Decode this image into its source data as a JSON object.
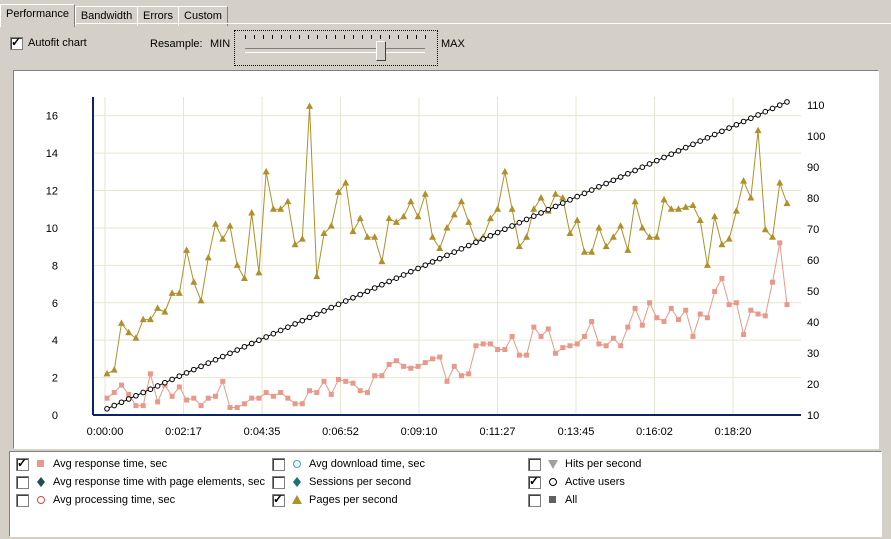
{
  "tabs": [
    {
      "label": "Performance",
      "active": true
    },
    {
      "label": "Bandwidth",
      "active": false
    },
    {
      "label": "Errors",
      "active": false
    },
    {
      "label": "Custom",
      "active": false
    }
  ],
  "autofit": {
    "label": "Autofit chart",
    "checked": true
  },
  "resample": {
    "label": "Resample:",
    "min_label": "MIN",
    "max_label": "MAX",
    "level": 0.75
  },
  "chart_data": {
    "type": "line",
    "x_tick_labels": [
      "0:00:00",
      "0:02:17",
      "0:04:35",
      "0:06:52",
      "0:09:10",
      "0:11:27",
      "0:13:45",
      "0:16:02",
      "0:18:20"
    ],
    "y_left": {
      "ylim": [
        0,
        17
      ],
      "ticks": [
        0,
        2,
        4,
        6,
        8,
        10,
        12,
        14,
        16
      ]
    },
    "y_right": {
      "ylim": [
        10,
        110
      ],
      "ticks": [
        10,
        20,
        30,
        40,
        50,
        60,
        70,
        80,
        90,
        100,
        110
      ]
    },
    "series": [
      {
        "name": "Avg response time, sec",
        "axis": "left",
        "color": "#e8998a",
        "marker": "square",
        "values": [
          0.9,
          1.2,
          1.6,
          1.1,
          0.5,
          0.5,
          2.2,
          0.7,
          1.6,
          1.0,
          1.5,
          0.8,
          0.9,
          0.5,
          0.9,
          1.0,
          1.8,
          0.4,
          0.4,
          0.6,
          0.9,
          0.9,
          1.2,
          1.0,
          1.2,
          0.9,
          0.6,
          0.6,
          1.3,
          1.2,
          1.8,
          1.1,
          1.9,
          1.8,
          1.7,
          1.3,
          1.2,
          2.1,
          2.1,
          2.7,
          2.9,
          2.6,
          2.5,
          2.6,
          2.8,
          3.0,
          3.1,
          1.8,
          2.6,
          2.1,
          2.2,
          3.7,
          3.8,
          3.8,
          3.5,
          3.5,
          4.2,
          3.2,
          3.2,
          4.7,
          4.2,
          4.6,
          3.3,
          3.6,
          3.7,
          3.8,
          4.2,
          5.0,
          3.8,
          3.7,
          4.1,
          3.7,
          4.7,
          5.7,
          4.8,
          6.0,
          5.2,
          5.0,
          5.7,
          5.1,
          5.6,
          4.2,
          5.4,
          5.2,
          6.6,
          7.3,
          5.9,
          6.0,
          4.3,
          5.6,
          5.4,
          5.3,
          7.1,
          9.2,
          5.9
        ]
      },
      {
        "name": "Pages per second",
        "axis": "left",
        "color": "#b0902a",
        "marker": "triangle",
        "values": [
          2.2,
          2.4,
          4.9,
          4.4,
          4.1,
          5.1,
          5.1,
          5.7,
          5.5,
          6.5,
          6.5,
          8.8,
          7.1,
          6.1,
          8.4,
          10.2,
          9.4,
          10.1,
          8.0,
          7.3,
          10.8,
          7.6,
          13.0,
          11.0,
          11.0,
          11.4,
          9.1,
          9.4,
          16.5,
          7.4,
          9.7,
          10.1,
          11.9,
          12.4,
          9.8,
          10.5,
          9.5,
          9.5,
          8.2,
          10.5,
          10.3,
          10.6,
          11.4,
          10.6,
          11.8,
          9.5,
          8.9,
          10.0,
          10.7,
          11.4,
          10.3,
          9.3,
          9.5,
          10.5,
          11.0,
          13.0,
          11.0,
          9.0,
          9.5,
          11.0,
          11.6,
          10.9,
          11.8,
          11.6,
          9.7,
          10.4,
          8.7,
          8.7,
          10.0,
          9.0,
          9.5,
          10.1,
          8.8,
          11.4,
          10.0,
          9.5,
          9.5,
          11.5,
          11.0,
          11.0,
          11.1,
          11.2,
          10.4,
          8.0,
          10.6,
          9.1,
          9.4,
          10.9,
          12.5,
          11.6,
          15.2,
          9.9,
          9.5,
          12.4,
          11.3
        ]
      },
      {
        "name": "Active users",
        "axis": "right",
        "color": "#000000",
        "marker": "circle-open",
        "values_range": [
          12,
          111
        ]
      }
    ]
  },
  "legend": [
    {
      "label": "Avg response time, sec",
      "checked": true,
      "icon": "square-icon",
      "color": "#e8998a"
    },
    {
      "label": "Avg response time with page elements, sec",
      "checked": false,
      "icon": "diamond-icon",
      "color": "#1f4f4f"
    },
    {
      "label": "Avg processing time, sec",
      "checked": false,
      "icon": "circle-icon",
      "color": "#d24848"
    },
    {
      "label": "Avg download time, sec",
      "checked": false,
      "icon": "circle-icon",
      "color": "#35a8c8"
    },
    {
      "label": "Sessions per second",
      "checked": false,
      "icon": "diamond-icon",
      "color": "#1f7070"
    },
    {
      "label": "Pages per second",
      "checked": true,
      "icon": "triangle-icon",
      "color": "#b0902a"
    },
    {
      "label": "Hits per second",
      "checked": false,
      "icon": "triangle-down-icon",
      "color": "#a0a0a0"
    },
    {
      "label": "Active users",
      "checked": true,
      "icon": "circle-icon",
      "color": "#000000"
    },
    {
      "label": "All",
      "checked": false,
      "icon": "square-icon",
      "color": "#606060"
    }
  ]
}
